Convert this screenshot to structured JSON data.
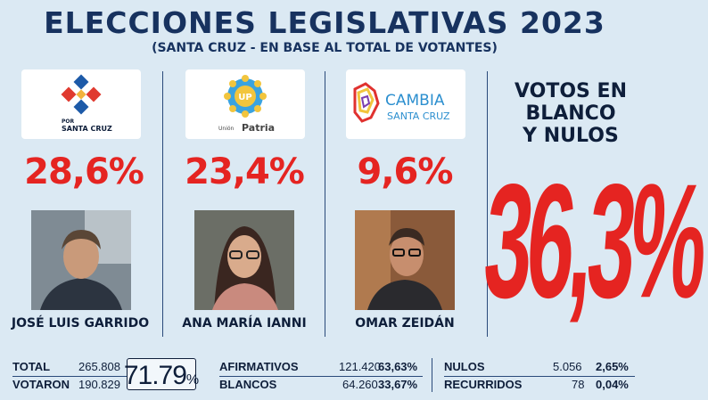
{
  "header": {
    "title": "ELECCIONES LEGISLATIVAS 2023",
    "subtitle": "(SANTA CRUZ - EN BASE AL TOTAL DE VOTANTES)"
  },
  "candidates": [
    {
      "party_line1": "POR",
      "party_line2": "SANTA CRUZ",
      "percent": "28,6%",
      "name": "JOSÉ LUIS GARRIDO",
      "logo_color": "#1d5aa8"
    },
    {
      "party_line1": "Unión",
      "party_line2": "Patria",
      "party_badge": "UP",
      "percent": "23,4%",
      "name": "ANA MARÍA IANNI",
      "logo_color": "#3aa3e0"
    },
    {
      "party_line1": "CAMBIA",
      "party_line2": "SANTA CRUZ",
      "percent": "9,6%",
      "name": "OMAR ZEIDÁN",
      "logo_color": "#2c8fcf"
    }
  ],
  "blank": {
    "title_line1": "VOTOS EN",
    "title_line2": "BLANCO",
    "title_line3": "Y NULOS",
    "percent": "36,3%"
  },
  "stats": {
    "total_label": "TOTAL",
    "total_value": "265.808",
    "voted_label": "VOTARON",
    "voted_value": "190.829",
    "turnout_value": "71.79",
    "turnout_symbol": "%",
    "affirmative_label": "AFIRMATIVOS",
    "affirmative_value": "121.420",
    "affirmative_pct": "63,63%",
    "blank_label": "BLANCOS",
    "blank_value": "64.260",
    "blank_pct": "33,67%",
    "null_label": "NULOS",
    "null_value": "5.056",
    "null_pct": "2,65%",
    "challenged_label": "RECURRIDOS",
    "challenged_value": "78",
    "challenged_pct": "0,04%"
  },
  "colors": {
    "accent": "#e52421",
    "navy": "#17325f",
    "background": "#dbe9f3"
  }
}
